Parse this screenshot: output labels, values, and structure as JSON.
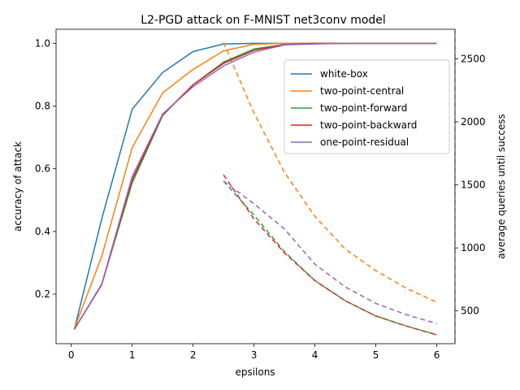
{
  "chart_data": {
    "type": "line",
    "title": "L2-PGD attack on F-MNIST net3conv model",
    "xlabel": "epsilons",
    "ylabel": "accuracy of attack",
    "y2label": "average queries until success",
    "xlim": [
      -0.25,
      6.3
    ],
    "ylim": [
      0.042,
      1.045
    ],
    "y2lim": [
      240,
      2735
    ],
    "xticks": [
      0,
      1,
      2,
      3,
      4,
      5,
      6
    ],
    "yticks": [
      0.2,
      0.4,
      0.6,
      0.8,
      1.0
    ],
    "y2ticks": [
      500,
      1000,
      1500,
      2000,
      2500
    ],
    "legend_position": "upper right",
    "grid": false,
    "series": [
      {
        "name": "white-box",
        "color": "#1f77b4",
        "x": [
          0.05,
          0.5,
          1.0,
          1.5,
          2.0,
          2.5,
          3.0,
          3.5,
          4.0,
          4.5,
          5.0,
          5.5,
          6.0
        ],
        "accuracy": [
          0.088,
          0.44,
          0.79,
          0.907,
          0.974,
          0.998,
          1.0,
          1.0,
          1.0,
          1.0,
          1.0,
          1.0,
          1.0
        ],
        "queries": []
      },
      {
        "name": "two-point-central",
        "color": "#ff7f0e",
        "x": [
          0.05,
          0.5,
          1.0,
          1.5,
          2.0,
          2.5,
          3.0,
          3.5,
          4.0,
          4.5,
          5.0,
          5.5,
          6.0
        ],
        "accuracy": [
          0.09,
          0.32,
          0.667,
          0.842,
          0.917,
          0.976,
          0.997,
          1.0,
          1.0,
          1.0,
          1.0,
          1.0,
          1.0
        ],
        "queries_x": [
          2.5,
          3.0,
          3.5,
          4.0,
          4.5,
          5.0,
          5.5,
          6.0
        ],
        "queries": [
          2630,
          2070,
          1600,
          1250,
          990,
          820,
          680,
          570
        ]
      },
      {
        "name": "two-point-forward",
        "color": "#2ca02c",
        "x": [
          0.05,
          0.5,
          1.0,
          1.5,
          2.0,
          2.5,
          3.0,
          3.5,
          4.0,
          4.5,
          5.0,
          5.5,
          6.0
        ],
        "accuracy": [
          0.088,
          0.232,
          0.555,
          0.77,
          0.868,
          0.94,
          0.982,
          0.996,
          1.0,
          1.0,
          1.0,
          1.0,
          1.0
        ],
        "queries_x": [
          2.5,
          3.0,
          3.5,
          4.0,
          4.5,
          5.0,
          5.5,
          6.0
        ],
        "queries": [
          1530,
          1260,
          970,
          740,
          580,
          460,
          380,
          310
        ]
      },
      {
        "name": "two-point-backward",
        "color": "#d62728",
        "x": [
          0.05,
          0.5,
          1.0,
          1.5,
          2.0,
          2.5,
          3.0,
          3.5,
          4.0,
          4.5,
          5.0,
          5.5,
          6.0
        ],
        "accuracy": [
          0.088,
          0.23,
          0.565,
          0.772,
          0.868,
          0.936,
          0.978,
          0.996,
          1.0,
          1.0,
          1.0,
          1.0,
          1.0
        ],
        "queries_x": [
          2.5,
          3.0,
          3.5,
          4.0,
          4.5,
          5.0,
          5.5,
          6.0
        ],
        "queries": [
          1580,
          1230,
          960,
          740,
          580,
          460,
          380,
          310
        ]
      },
      {
        "name": "one-point-residual",
        "color": "#9467bd",
        "x": [
          0.05,
          0.5,
          1.0,
          1.5,
          2.0,
          2.5,
          3.0,
          3.5,
          4.0,
          4.5,
          5.0,
          5.5,
          6.0
        ],
        "accuracy": [
          0.088,
          0.232,
          0.575,
          0.775,
          0.862,
          0.928,
          0.972,
          0.995,
          0.998,
          1.0,
          1.0,
          1.0,
          1.0
        ],
        "queries_x": [
          2.5,
          3.0,
          3.5,
          4.0,
          4.5,
          5.0,
          5.5,
          6.0
        ],
        "queries": [
          1530,
          1350,
          1150,
          870,
          690,
          560,
          470,
          400
        ]
      }
    ]
  }
}
